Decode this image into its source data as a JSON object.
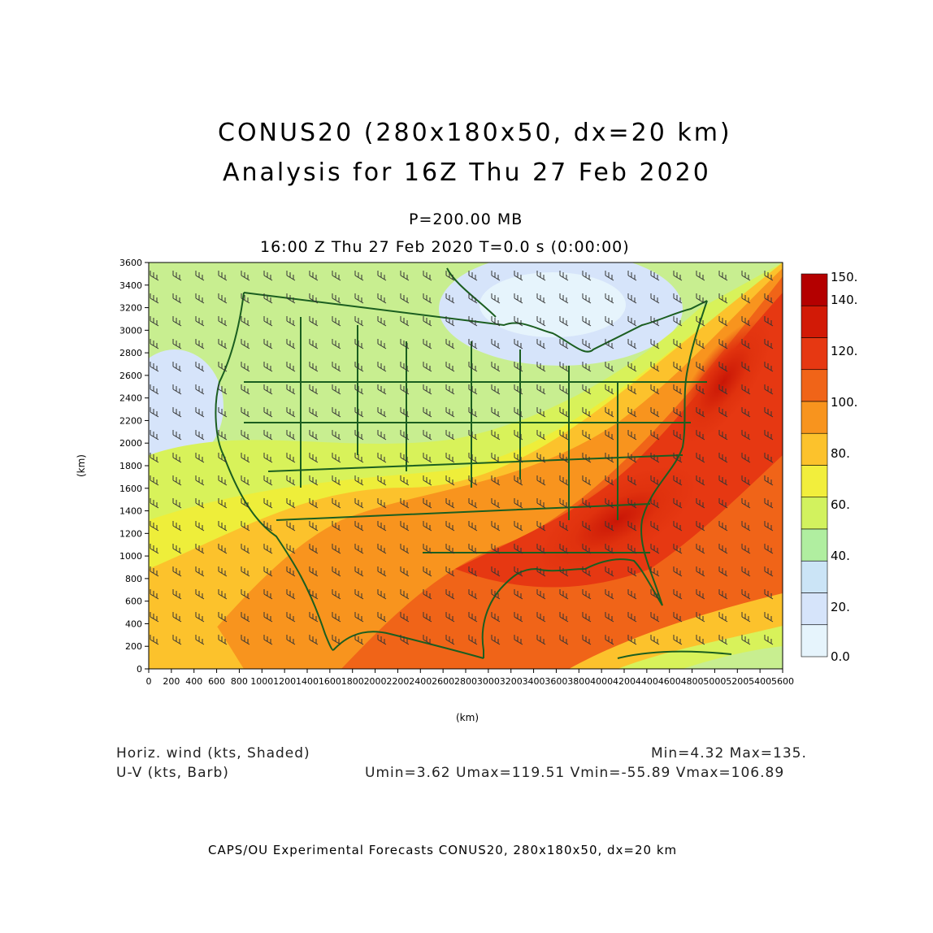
{
  "title": {
    "line1": "CONUS20 (280x180x50, dx=20 km)",
    "line2": "Analysis for 16Z Thu 27 Feb 2020"
  },
  "level": "P=200.00 MB",
  "time_line": "16:00 Z Thu 27 Feb 2020    T=0.0 s (0:00:00)",
  "axes": {
    "xlabel": "(km)",
    "ylabel": "(km)",
    "x_ticks": [
      "0",
      "200",
      "400",
      "600",
      "800",
      "1000",
      "1200",
      "1400",
      "1600",
      "1800",
      "2000",
      "2200",
      "2400",
      "2600",
      "2800",
      "3000",
      "3200",
      "3400",
      "3600",
      "3800",
      "4000",
      "4200",
      "4400",
      "4600",
      "4800",
      "5000",
      "5200",
      "5400",
      "5600"
    ],
    "y_ticks": [
      "0",
      "200",
      "400",
      "600",
      "800",
      "1000",
      "1200",
      "1400",
      "1600",
      "1800",
      "2000",
      "2200",
      "2400",
      "2600",
      "2800",
      "3000",
      "3200",
      "3400",
      "3600"
    ]
  },
  "colorbar": {
    "labels": [
      "150.",
      "140.",
      "120.",
      "100.",
      "80.",
      "60.",
      "40.",
      "20.",
      "0.0"
    ],
    "colors": [
      "#b40000",
      "#d21a06",
      "#e63812",
      "#f06418",
      "#f8941e",
      "#fcc22c",
      "#f2ee3c",
      "#d2f25e",
      "#b0eea0",
      "#cbe4f6",
      "#d6e4fa",
      "#e6f4fc"
    ]
  },
  "legend": {
    "shaded": "Horiz. wind (kts, Shaded)",
    "barb": "U-V (kts, Barb)",
    "minmax": "Min=4.32 Max=135.",
    "uv_stats": "Umin=3.62 Umax=119.51 Vmin=-55.89 Vmax=106.89"
  },
  "footer": "CAPS/OU Experimental Forecasts   CONUS20, 280x180x50, dx=20 km",
  "colors": {
    "coast": "#1b5e20",
    "frame": "#000000"
  }
}
